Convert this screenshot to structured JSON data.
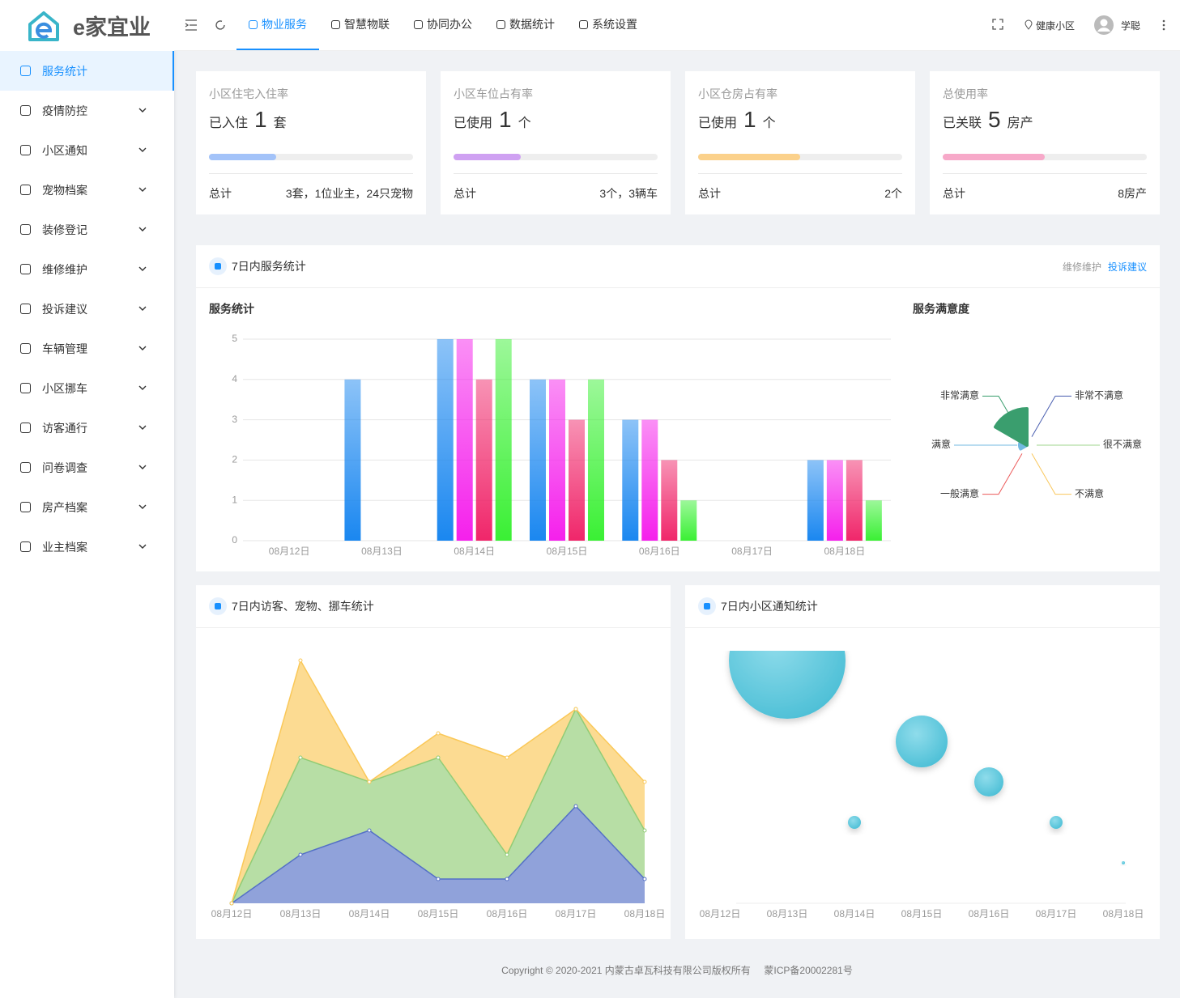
{
  "header": {
    "logo": "e家宜业",
    "tabs": [
      "物业服务",
      "智慧物联",
      "协同办公",
      "数据统计",
      "系统设置"
    ],
    "active_tab": 0,
    "community": "健康小区",
    "user": "学聪"
  },
  "sidebar": {
    "items": [
      "服务统计",
      "疫情防控",
      "小区通知",
      "宠物档案",
      "装修登记",
      "维修维护",
      "投诉建议",
      "车辆管理",
      "小区挪车",
      "访客通行",
      "问卷调查",
      "房产档案",
      "业主档案"
    ],
    "active": 0
  },
  "stats": [
    {
      "title": "小区住宅入住率",
      "prefix": "已入住",
      "value": 1,
      "unit": "套",
      "progress": 33,
      "color": "#a3c3f9",
      "total_label": "总计",
      "total": "3套，1位业主，24只宠物"
    },
    {
      "title": "小区车位占有率",
      "prefix": "已使用",
      "value": 1,
      "unit": "个",
      "progress": 33,
      "color": "#cfa1f2",
      "total_label": "总计",
      "total": "3个，3辆车"
    },
    {
      "title": "小区仓房占有率",
      "prefix": "已使用",
      "value": 1,
      "unit": "个",
      "progress": 50,
      "color": "#fbd18b",
      "total_label": "总计",
      "total": "2个"
    },
    {
      "title": "总使用率",
      "prefix": "已关联",
      "value": 5,
      "unit": "房产",
      "progress": 50,
      "color": "#f7a9c9",
      "total_label": "总计",
      "total": "8房产"
    }
  ],
  "panels": [
    {
      "title": "7日内服务统计",
      "links": [
        "维修维护",
        "投诉建议"
      ],
      "active_link": 1
    },
    {
      "title": "7日内访客、宠物、挪车统计"
    },
    {
      "title": "7日内小区通知统计"
    }
  ],
  "chart_data": [
    {
      "type": "bar",
      "title": "服务统计",
      "categories": [
        "08月12日",
        "08月13日",
        "08月14日",
        "08月15日",
        "08月16日",
        "08月17日",
        "08月18日"
      ],
      "series": [
        {
          "color": "#1a87f0",
          "values": [
            0,
            4,
            5,
            4,
            3,
            0,
            2
          ]
        },
        {
          "color": "#f520ec",
          "values": [
            0,
            0,
            5,
            4,
            3,
            0,
            2
          ]
        },
        {
          "color": "#f0266a",
          "values": [
            0,
            0,
            4,
            3,
            2,
            0,
            2
          ]
        },
        {
          "color": "#3af034",
          "values": [
            0,
            0,
            5,
            4,
            1,
            0,
            1
          ]
        }
      ],
      "ylim": [
        0,
        5
      ],
      "yticks": [
        0,
        1,
        2,
        3,
        4,
        5
      ],
      "grid": true
    },
    {
      "type": "pie",
      "title": "服务满意度",
      "rose": true,
      "categories": [
        "非常不满意",
        "很不满意",
        "不满意",
        "一般满意",
        "满意",
        "非常满意"
      ],
      "values": [
        0,
        0,
        0,
        0,
        2,
        10
      ],
      "colors": [
        "#4a5fb0",
        "#9fd68c",
        "#f9c75c",
        "#ec5a5a",
        "#73b9e2",
        "#3a9e6e"
      ]
    },
    {
      "type": "area",
      "stacked": true,
      "categories": [
        "08月12日",
        "08月13日",
        "08月14日",
        "08月15日",
        "08月16日",
        "08月17日",
        "08月18日"
      ],
      "series": [
        {
          "color": "#5470c6",
          "values": [
            0,
            2,
            3,
            1,
            1,
            4,
            1
          ]
        },
        {
          "color": "#91cc75",
          "values": [
            0,
            4,
            2,
            5,
            1,
            4,
            2
          ]
        },
        {
          "color": "#fac858",
          "values": [
            0,
            4,
            0,
            1,
            4,
            0,
            2
          ]
        }
      ]
    },
    {
      "type": "scatter",
      "categories": [
        "08月12日",
        "08月13日",
        "08月14日",
        "08月15日",
        "08月16日",
        "08月17日",
        "08月18日"
      ],
      "values": [
        0,
        6,
        2,
        4,
        3,
        2,
        1
      ],
      "color": "#5ac8dc"
    }
  ],
  "footer": {
    "copyright": "Copyright © 2020-2021 内蒙古卓瓦科技有限公司版权所有",
    "icp": "蒙ICP备20002281号"
  }
}
